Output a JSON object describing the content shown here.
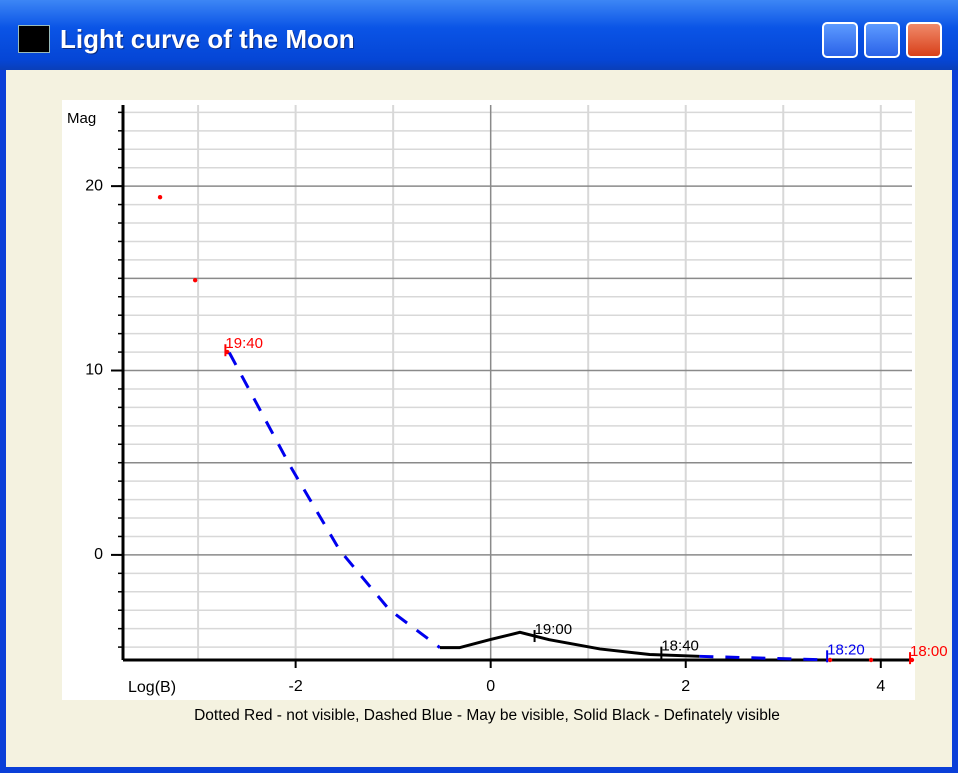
{
  "window": {
    "title": "Light curve of the Moon"
  },
  "chart_data": {
    "type": "line",
    "ylabel": "Mag",
    "xlabel": "Log(B)",
    "caption": "Dotted Red - not visible, Dashed Blue - May be visible, Solid Black - Definately visible",
    "xlim": [
      -3.77,
      4.32
    ],
    "ylim": [
      -5.7,
      24.4
    ],
    "xticks": [
      -2,
      0,
      2,
      4
    ],
    "yticks": [
      0,
      10,
      20
    ],
    "xgrid": [
      -3,
      -2,
      -1,
      1,
      2,
      3,
      4
    ],
    "xgrid_major": [
      0
    ],
    "ygrid": [
      -5,
      -4,
      -3,
      -2,
      -1,
      1,
      2,
      3,
      4,
      6,
      7,
      8,
      9,
      11,
      12,
      13,
      14,
      16,
      17,
      18,
      19,
      21,
      22,
      23,
      24
    ],
    "ygrid_major": [
      0,
      5,
      10,
      15,
      20
    ],
    "series": [
      {
        "color": "#ff0000",
        "style": "dotted",
        "x": [
          -3.39,
          -3.03,
          -2.7
        ],
        "values": [
          19.4,
          14.9,
          11.0
        ]
      },
      {
        "color": "#0000ee",
        "style": "dashed",
        "x": [
          -2.68,
          -2.06,
          -1.55,
          -1.04,
          -0.52
        ],
        "values": [
          10.97,
          4.86,
          0.27,
          -2.97,
          -5.03
        ]
      },
      {
        "color": "#000000",
        "style": "solid",
        "x": [
          -0.52,
          -0.32,
          -0.01,
          0.3,
          0.6,
          1.12,
          1.63,
          2.14
        ],
        "values": [
          -5.03,
          -5.03,
          -4.6,
          -4.2,
          -4.6,
          -5.1,
          -5.4,
          -5.5
        ]
      },
      {
        "color": "#0000ee",
        "style": "dashed",
        "x": [
          2.14,
          2.8,
          3.48
        ],
        "values": [
          -5.5,
          -5.6,
          -5.7
        ]
      },
      {
        "color": "#ff0000",
        "style": "dotted",
        "x": [
          3.48,
          3.9,
          4.32
        ],
        "values": [
          -5.7,
          -5.7,
          -5.7
        ]
      }
    ],
    "annotations": [
      {
        "text": "19:40",
        "x": -2.72,
        "y": 11.1,
        "color": "#ff0000"
      },
      {
        "text": "19:00",
        "x": 0.45,
        "y": -4.4,
        "color": "#000000"
      },
      {
        "text": "18:40",
        "x": 1.75,
        "y": -5.3,
        "color": "#000000"
      },
      {
        "text": "18:20",
        "x": 3.45,
        "y": -5.5,
        "color": "#0000ee"
      },
      {
        "text": "18:00",
        "x": 4.3,
        "y": -5.6,
        "color": "#ff0000"
      }
    ]
  }
}
